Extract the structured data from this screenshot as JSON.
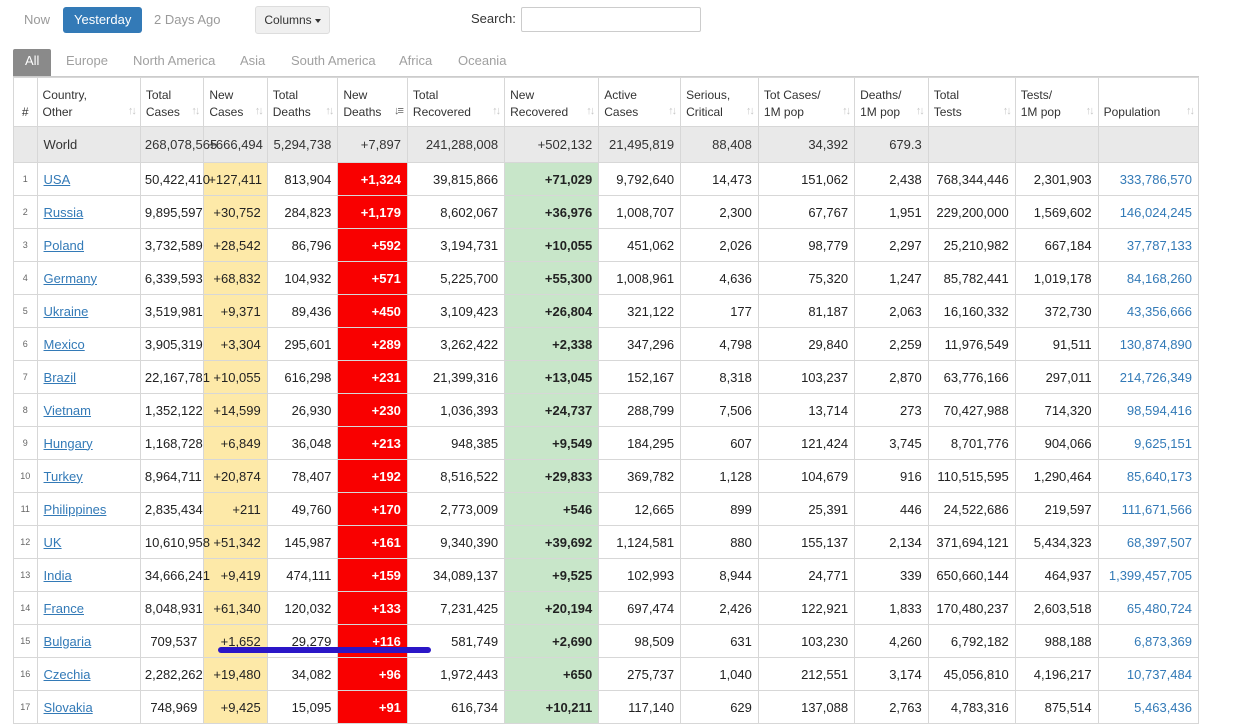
{
  "topbar": {
    "days": [
      "Now",
      "Yesterday",
      "2 Days Ago"
    ],
    "active_day": "Yesterday",
    "columns_label": "Columns",
    "search_label": "Search:",
    "search_value": ""
  },
  "regions": [
    "All",
    "Europe",
    "North America",
    "Asia",
    "South America",
    "Africa",
    "Oceania"
  ],
  "active_region": "All",
  "headers": [
    {
      "key": "num",
      "label": "#"
    },
    {
      "key": "country",
      "label1": "Country,",
      "label2": "Other"
    },
    {
      "key": "total_cases",
      "label1": "Total",
      "label2": "Cases"
    },
    {
      "key": "new_cases",
      "label1": "New",
      "label2": "Cases"
    },
    {
      "key": "total_deaths",
      "label1": "Total",
      "label2": "Deaths"
    },
    {
      "key": "new_deaths",
      "label1": "New",
      "label2": "Deaths"
    },
    {
      "key": "total_recovered",
      "label1": "Total",
      "label2": "Recovered"
    },
    {
      "key": "new_recovered",
      "label1": "New",
      "label2": "Recovered"
    },
    {
      "key": "active_cases",
      "label1": "Active",
      "label2": "Cases"
    },
    {
      "key": "critical",
      "label1": "Serious,",
      "label2": "Critical"
    },
    {
      "key": "cases_per_m",
      "label1": "Tot Cases/",
      "label2": "1M pop"
    },
    {
      "key": "deaths_per_m",
      "label1": "Deaths/",
      "label2": "1M pop"
    },
    {
      "key": "total_tests",
      "label1": "Total",
      "label2": "Tests"
    },
    {
      "key": "tests_per_m",
      "label1": "Tests/",
      "label2": "1M pop"
    },
    {
      "key": "population",
      "label1": "",
      "label2": "Population"
    }
  ],
  "world": [
    "",
    "World",
    "268,078,565",
    "+666,494",
    "5,294,738",
    "+7,897",
    "241,288,008",
    "+502,132",
    "21,495,819",
    "88,408",
    "34,392",
    "679.3",
    "",
    "",
    ""
  ],
  "rows": [
    [
      "1",
      "USA",
      "50,422,410",
      "+127,411",
      "813,904",
      "+1,324",
      "39,815,866",
      "+71,029",
      "9,792,640",
      "14,473",
      "151,062",
      "2,438",
      "768,344,446",
      "2,301,903",
      "333,786,570"
    ],
    [
      "2",
      "Russia",
      "9,895,597",
      "+30,752",
      "284,823",
      "+1,179",
      "8,602,067",
      "+36,976",
      "1,008,707",
      "2,300",
      "67,767",
      "1,951",
      "229,200,000",
      "1,569,602",
      "146,024,245"
    ],
    [
      "3",
      "Poland",
      "3,732,589",
      "+28,542",
      "86,796",
      "+592",
      "3,194,731",
      "+10,055",
      "451,062",
      "2,026",
      "98,779",
      "2,297",
      "25,210,982",
      "667,184",
      "37,787,133"
    ],
    [
      "4",
      "Germany",
      "6,339,593",
      "+68,832",
      "104,932",
      "+571",
      "5,225,700",
      "+55,300",
      "1,008,961",
      "4,636",
      "75,320",
      "1,247",
      "85,782,441",
      "1,019,178",
      "84,168,260"
    ],
    [
      "5",
      "Ukraine",
      "3,519,981",
      "+9,371",
      "89,436",
      "+450",
      "3,109,423",
      "+26,804",
      "321,122",
      "177",
      "81,187",
      "2,063",
      "16,160,332",
      "372,730",
      "43,356,666"
    ],
    [
      "6",
      "Mexico",
      "3,905,319",
      "+3,304",
      "295,601",
      "+289",
      "3,262,422",
      "+2,338",
      "347,296",
      "4,798",
      "29,840",
      "2,259",
      "11,976,549",
      "91,511",
      "130,874,890"
    ],
    [
      "7",
      "Brazil",
      "22,167,781",
      "+10,055",
      "616,298",
      "+231",
      "21,399,316",
      "+13,045",
      "152,167",
      "8,318",
      "103,237",
      "2,870",
      "63,776,166",
      "297,011",
      "214,726,349"
    ],
    [
      "8",
      "Vietnam",
      "1,352,122",
      "+14,599",
      "26,930",
      "+230",
      "1,036,393",
      "+24,737",
      "288,799",
      "7,506",
      "13,714",
      "273",
      "70,427,988",
      "714,320",
      "98,594,416"
    ],
    [
      "9",
      "Hungary",
      "1,168,728",
      "+6,849",
      "36,048",
      "+213",
      "948,385",
      "+9,549",
      "184,295",
      "607",
      "121,424",
      "3,745",
      "8,701,776",
      "904,066",
      "9,625,151"
    ],
    [
      "10",
      "Turkey",
      "8,964,711",
      "+20,874",
      "78,407",
      "+192",
      "8,516,522",
      "+29,833",
      "369,782",
      "1,128",
      "104,679",
      "916",
      "110,515,595",
      "1,290,464",
      "85,640,173"
    ],
    [
      "11",
      "Philippines",
      "2,835,434",
      "+211",
      "49,760",
      "+170",
      "2,773,009",
      "+546",
      "12,665",
      "899",
      "25,391",
      "446",
      "24,522,686",
      "219,597",
      "111,671,566"
    ],
    [
      "12",
      "UK",
      "10,610,958",
      "+51,342",
      "145,987",
      "+161",
      "9,340,390",
      "+39,692",
      "1,124,581",
      "880",
      "155,137",
      "2,134",
      "371,694,121",
      "5,434,323",
      "68,397,507"
    ],
    [
      "13",
      "India",
      "34,666,241",
      "+9,419",
      "474,111",
      "+159",
      "34,089,137",
      "+9,525",
      "102,993",
      "8,944",
      "24,771",
      "339",
      "650,660,144",
      "464,937",
      "1,399,457,705"
    ],
    [
      "14",
      "France",
      "8,048,931",
      "+61,340",
      "120,032",
      "+133",
      "7,231,425",
      "+20,194",
      "697,474",
      "2,426",
      "122,921",
      "1,833",
      "170,480,237",
      "2,603,518",
      "65,480,724"
    ],
    [
      "15",
      "Bulgaria",
      "709,537",
      "+1,652",
      "29,279",
      "+116",
      "581,749",
      "+2,690",
      "98,509",
      "631",
      "103,230",
      "4,260",
      "6,792,182",
      "988,188",
      "6,873,369"
    ],
    [
      "16",
      "Czechia",
      "2,282,262",
      "+19,480",
      "34,082",
      "+96",
      "1,972,443",
      "+650",
      "275,737",
      "1,040",
      "212,551",
      "3,174",
      "45,056,810",
      "4,196,217",
      "10,737,484"
    ],
    [
      "17",
      "Slovakia",
      "748,969",
      "+9,425",
      "15,095",
      "+91",
      "616,734",
      "+10,211",
      "117,140",
      "629",
      "137,088",
      "2,763",
      "4,783,316",
      "875,514",
      "5,463,436"
    ]
  ],
  "colors": {
    "accent": "#337ab7",
    "new_cases_bg": "#fde9a8",
    "new_deaths_bg": "#f90000",
    "new_recovered_bg": "#c8e6c9",
    "annotation_line": "#2a16c7"
  }
}
